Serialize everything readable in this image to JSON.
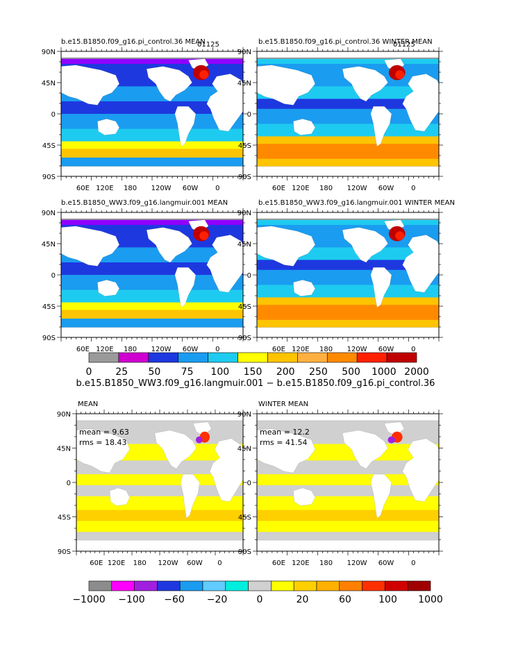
{
  "colors": {
    "ocean_palette": [
      "#9a9a9a",
      "#d000d0",
      "#9000ff",
      "#1e38e0",
      "#1a9cf0",
      "#1ecbf0",
      "#3cf0f0",
      "#ffff00",
      "#ffc400",
      "#ff8a00",
      "#ff2000",
      "#c00000"
    ],
    "diff_palette": [
      "#8c8c8c",
      "#ff00ff",
      "#a020e0",
      "#1e38e0",
      "#1a9cf0",
      "#60ccff",
      "#00eedd",
      "#d0d0d0",
      "#ffff00",
      "#ffd000",
      "#ffb000",
      "#ff8000",
      "#ff3000",
      "#d00000",
      "#a00000"
    ],
    "land": "#ffffff",
    "sea_ice_gray": "#9a9a9a",
    "diff_gray": "#cfcfcf"
  },
  "panels": [
    {
      "id": "p1",
      "title": "b.e15.B1850.f09_g16.pi_control.36 MEAN",
      "sub": "01125"
    },
    {
      "id": "p2",
      "title": "b.e15.B1850.f09_g16.pi_control.36 WINTER MEAN",
      "sub": "01125"
    },
    {
      "id": "p3",
      "title": "b.e15.B1850_WW3.f09_g16.langmuir.001 MEAN",
      "sub": ""
    },
    {
      "id": "p4",
      "title": "b.e15.B1850_WW3.f09_g16.langmuir.001 WINTER MEAN",
      "sub": ""
    },
    {
      "id": "p5",
      "title": "MEAN",
      "stat_mean": "mean = 9.63",
      "stat_rms": "rms = 18.43"
    },
    {
      "id": "p6",
      "title": "WINTER MEAN",
      "stat_mean": "mean = 12.2",
      "stat_rms": "rms = 41.54"
    }
  ],
  "axes": {
    "lat_labels": [
      "90N",
      "45N",
      "0",
      "45S",
      "90S"
    ],
    "lon_labels": [
      "60E",
      "120E",
      "180",
      "120W",
      "60W",
      "0"
    ]
  },
  "colorbar_top": {
    "labels": [
      "0",
      "25",
      "50",
      "75",
      "100",
      "150",
      "200",
      "250",
      "500",
      "1000",
      "2000"
    ],
    "caption": "b.e15.B1850_WW3.f09_g16.langmuir.001 − b.e15.B1850.f09_g16.pi_control.36"
  },
  "colorbar_bottom": {
    "labels": [
      "−1000",
      "−100",
      "−60",
      "−20",
      "0",
      "20",
      "60",
      "100",
      "1000"
    ]
  }
}
